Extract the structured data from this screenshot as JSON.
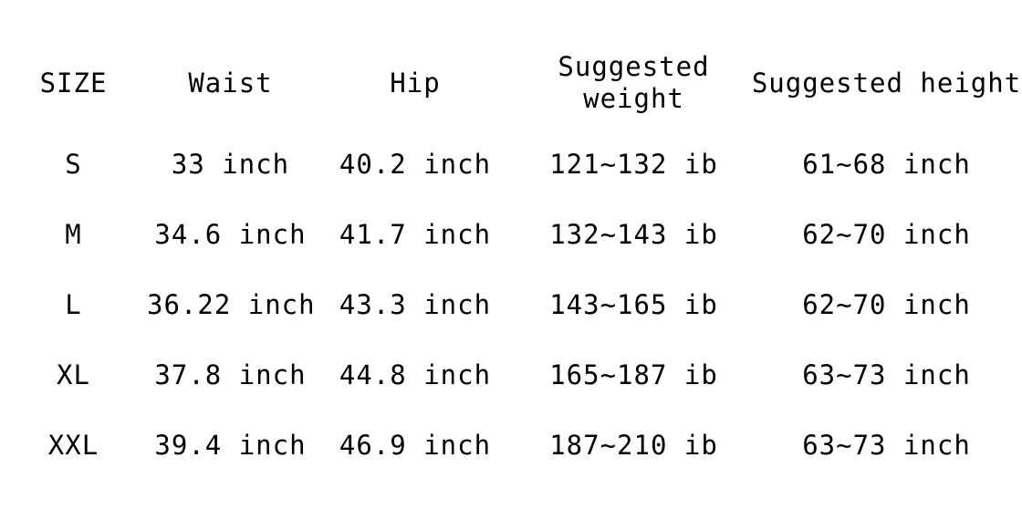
{
  "page": {
    "background_color": "#ffffff",
    "text_color": "#000000"
  },
  "chart_data": {
    "type": "table",
    "columns": [
      "SIZE",
      "Waist",
      "Hip",
      "Suggested weight",
      "Suggested height"
    ],
    "rows": [
      {
        "size": "S",
        "waist": "33 inch",
        "hip": "40.2 inch",
        "suggested_weight": "121~132 ib",
        "suggested_height": "61~68 inch"
      },
      {
        "size": "M",
        "waist": "34.6 inch",
        "hip": "41.7 inch",
        "suggested_weight": "132~143 ib",
        "suggested_height": "62~70 inch"
      },
      {
        "size": "L",
        "waist": "36.22 inch",
        "hip": "43.3 inch",
        "suggested_weight": "143~165 ib",
        "suggested_height": "62~70 inch"
      },
      {
        "size": "XL",
        "waist": "37.8 inch",
        "hip": "44.8 inch",
        "suggested_weight": "165~187 ib",
        "suggested_height": "63~73 inch"
      },
      {
        "size": "XXL",
        "waist": "39.4 inch",
        "hip": "46.9 inch",
        "suggested_weight": "187~210 ib",
        "suggested_height": "63~73 inch"
      }
    ],
    "notes": {
      "waist_unit": "inch",
      "hip_unit": "inch",
      "weight_unit": "ib",
      "height_unit": "inch"
    }
  }
}
